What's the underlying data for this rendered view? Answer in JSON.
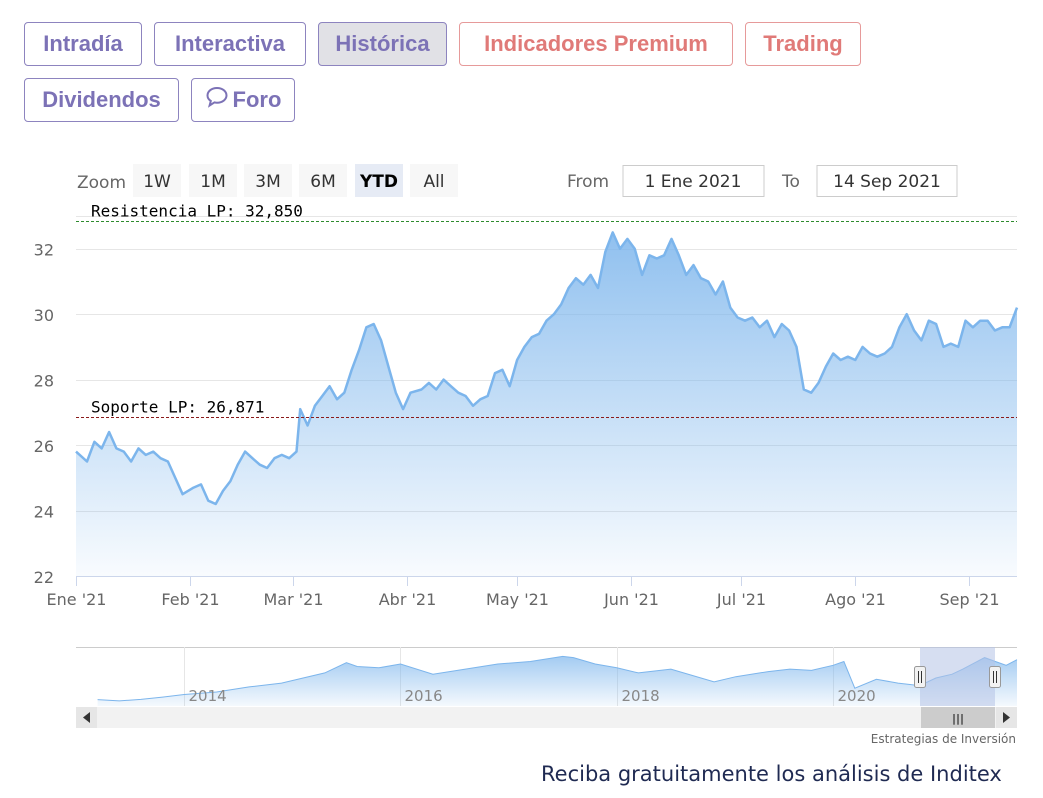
{
  "tabs": {
    "row1": [
      {
        "label": "Intradía",
        "style": "purple"
      },
      {
        "label": "Interactiva",
        "style": "purple"
      },
      {
        "label": "Histórica",
        "style": "active"
      },
      {
        "label": "Indicadores Premium",
        "style": "red"
      },
      {
        "label": "Trading",
        "style": "red"
      }
    ],
    "row2": [
      {
        "label": "Dividendos",
        "style": "purple"
      },
      {
        "label": "Foro",
        "style": "purple",
        "icon": "chat-bubble-icon"
      }
    ]
  },
  "range_selector": {
    "zoom_label": "Zoom",
    "buttons": [
      "1W",
      "1M",
      "3M",
      "6M",
      "YTD",
      "All"
    ],
    "selected": "YTD",
    "from_label": "From",
    "from_value": "1 Ene 2021",
    "to_label": "To",
    "to_value": "14 Sep 2021"
  },
  "colors": {
    "line": "#7cb5ec",
    "resistance": "#2e8b2e",
    "support": "#8b1a1a",
    "navigator_mask": "#b4c3e6"
  },
  "chart_data": {
    "type": "area",
    "series": [
      {
        "values": [
          [
            "2021-01-01",
            25.8
          ],
          [
            "2021-01-04",
            25.5
          ],
          [
            "2021-01-06",
            26.1
          ],
          [
            "2021-01-08",
            25.9
          ],
          [
            "2021-01-10",
            26.4
          ],
          [
            "2021-01-12",
            25.9
          ],
          [
            "2021-01-14",
            25.8
          ],
          [
            "2021-01-16",
            25.5
          ],
          [
            "2021-01-18",
            25.9
          ],
          [
            "2021-01-20",
            25.7
          ],
          [
            "2021-01-22",
            25.8
          ],
          [
            "2021-01-24",
            25.6
          ],
          [
            "2021-01-26",
            25.5
          ],
          [
            "2021-01-28",
            25.0
          ],
          [
            "2021-01-30",
            24.5
          ],
          [
            "2021-02-02",
            24.7
          ],
          [
            "2021-02-04",
            24.8
          ],
          [
            "2021-02-06",
            24.3
          ],
          [
            "2021-02-08",
            24.2
          ],
          [
            "2021-02-10",
            24.6
          ],
          [
            "2021-02-12",
            24.9
          ],
          [
            "2021-02-14",
            25.4
          ],
          [
            "2021-02-16",
            25.8
          ],
          [
            "2021-02-18",
            25.6
          ],
          [
            "2021-02-20",
            25.4
          ],
          [
            "2021-02-22",
            25.3
          ],
          [
            "2021-02-24",
            25.6
          ],
          [
            "2021-02-26",
            25.7
          ],
          [
            "2021-02-28",
            25.6
          ],
          [
            "2021-03-02",
            25.8
          ],
          [
            "2021-03-03",
            27.1
          ],
          [
            "2021-03-05",
            26.6
          ],
          [
            "2021-03-07",
            27.2
          ],
          [
            "2021-03-09",
            27.5
          ],
          [
            "2021-03-11",
            27.8
          ],
          [
            "2021-03-13",
            27.4
          ],
          [
            "2021-03-15",
            27.6
          ],
          [
            "2021-03-17",
            28.3
          ],
          [
            "2021-03-19",
            28.9
          ],
          [
            "2021-03-21",
            29.6
          ],
          [
            "2021-03-23",
            29.7
          ],
          [
            "2021-03-25",
            29.2
          ],
          [
            "2021-03-27",
            28.4
          ],
          [
            "2021-03-29",
            27.6
          ],
          [
            "2021-03-31",
            27.1
          ],
          [
            "2021-04-02",
            27.6
          ],
          [
            "2021-04-05",
            27.7
          ],
          [
            "2021-04-07",
            27.9
          ],
          [
            "2021-04-09",
            27.7
          ],
          [
            "2021-04-11",
            28.0
          ],
          [
            "2021-04-13",
            27.8
          ],
          [
            "2021-04-15",
            27.6
          ],
          [
            "2021-04-17",
            27.5
          ],
          [
            "2021-04-19",
            27.2
          ],
          [
            "2021-04-21",
            27.4
          ],
          [
            "2021-04-23",
            27.5
          ],
          [
            "2021-04-25",
            28.2
          ],
          [
            "2021-04-27",
            28.3
          ],
          [
            "2021-04-29",
            27.8
          ],
          [
            "2021-05-01",
            28.6
          ],
          [
            "2021-05-03",
            29.0
          ],
          [
            "2021-05-05",
            29.3
          ],
          [
            "2021-05-07",
            29.4
          ],
          [
            "2021-05-09",
            29.8
          ],
          [
            "2021-05-11",
            30.0
          ],
          [
            "2021-05-13",
            30.3
          ],
          [
            "2021-05-15",
            30.8
          ],
          [
            "2021-05-17",
            31.1
          ],
          [
            "2021-05-19",
            30.9
          ],
          [
            "2021-05-21",
            31.2
          ],
          [
            "2021-05-23",
            30.8
          ],
          [
            "2021-05-25",
            31.9
          ],
          [
            "2021-05-27",
            32.5
          ],
          [
            "2021-05-29",
            32.0
          ],
          [
            "2021-05-31",
            32.3
          ],
          [
            "2021-06-02",
            32.0
          ],
          [
            "2021-06-04",
            31.2
          ],
          [
            "2021-06-06",
            31.8
          ],
          [
            "2021-06-08",
            31.7
          ],
          [
            "2021-06-10",
            31.8
          ],
          [
            "2021-06-12",
            32.3
          ],
          [
            "2021-06-14",
            31.8
          ],
          [
            "2021-06-16",
            31.2
          ],
          [
            "2021-06-18",
            31.5
          ],
          [
            "2021-06-20",
            31.1
          ],
          [
            "2021-06-22",
            31.0
          ],
          [
            "2021-06-24",
            30.6
          ],
          [
            "2021-06-26",
            31.0
          ],
          [
            "2021-06-28",
            30.2
          ],
          [
            "2021-06-30",
            29.9
          ],
          [
            "2021-07-02",
            29.8
          ],
          [
            "2021-07-04",
            29.9
          ],
          [
            "2021-07-06",
            29.6
          ],
          [
            "2021-07-08",
            29.8
          ],
          [
            "2021-07-10",
            29.3
          ],
          [
            "2021-07-12",
            29.7
          ],
          [
            "2021-07-14",
            29.5
          ],
          [
            "2021-07-16",
            29.0
          ],
          [
            "2021-07-18",
            27.7
          ],
          [
            "2021-07-20",
            27.6
          ],
          [
            "2021-07-22",
            27.9
          ],
          [
            "2021-07-24",
            28.4
          ],
          [
            "2021-07-26",
            28.8
          ],
          [
            "2021-07-28",
            28.6
          ],
          [
            "2021-07-30",
            28.7
          ],
          [
            "2021-08-01",
            28.6
          ],
          [
            "2021-08-03",
            29.0
          ],
          [
            "2021-08-05",
            28.8
          ],
          [
            "2021-08-07",
            28.7
          ],
          [
            "2021-08-09",
            28.8
          ],
          [
            "2021-08-11",
            29.0
          ],
          [
            "2021-08-13",
            29.6
          ],
          [
            "2021-08-15",
            30.0
          ],
          [
            "2021-08-17",
            29.5
          ],
          [
            "2021-08-19",
            29.2
          ],
          [
            "2021-08-21",
            29.8
          ],
          [
            "2021-08-23",
            29.7
          ],
          [
            "2021-08-25",
            29.0
          ],
          [
            "2021-08-27",
            29.1
          ],
          [
            "2021-08-29",
            29.0
          ],
          [
            "2021-08-31",
            29.8
          ],
          [
            "2021-09-02",
            29.6
          ],
          [
            "2021-09-04",
            29.8
          ],
          [
            "2021-09-06",
            29.8
          ],
          [
            "2021-09-08",
            29.5
          ],
          [
            "2021-09-10",
            29.6
          ],
          [
            "2021-09-12",
            29.6
          ],
          [
            "2021-09-14",
            30.2
          ]
        ]
      }
    ],
    "x_range": [
      "2021-01-01",
      "2021-09-14"
    ],
    "ylim": [
      22,
      33
    ],
    "y_ticks": [
      22,
      24,
      26,
      28,
      30,
      32
    ],
    "x_ticks": [
      {
        "date": "2021-01-01",
        "label": "Ene '21"
      },
      {
        "date": "2021-02-01",
        "label": "Feb '21"
      },
      {
        "date": "2021-03-01",
        "label": "Mar '21"
      },
      {
        "date": "2021-04-01",
        "label": "Abr '21"
      },
      {
        "date": "2021-05-01",
        "label": "May '21"
      },
      {
        "date": "2021-06-01",
        "label": "Jun '21"
      },
      {
        "date": "2021-07-01",
        "label": "Jul '21"
      },
      {
        "date": "2021-08-01",
        "label": "Ago '21"
      },
      {
        "date": "2021-09-01",
        "label": "Sep '21"
      }
    ],
    "grid": true,
    "plot_lines": [
      {
        "label": "Resistencia LP: 32,850",
        "value": 32.85,
        "style": "dashed",
        "color": "#2e8b2e"
      },
      {
        "label": "Soporte LP: 26,871",
        "value": 26.871,
        "style": "dashed",
        "color": "#8b1a1a"
      }
    ],
    "navigator": {
      "x_labels": [
        "2014",
        "2016",
        "2018",
        "2020"
      ],
      "x_range": [
        2013.0,
        2021.7
      ],
      "label_years": [
        2014,
        2016,
        2018,
        2020
      ],
      "values": [
        [
          2013.2,
          14.5
        ],
        [
          2013.4,
          14.0
        ],
        [
          2013.6,
          14.6
        ],
        [
          2013.8,
          15.5
        ],
        [
          2014.0,
          16.5
        ],
        [
          2014.3,
          17.5
        ],
        [
          2014.6,
          19.5
        ],
        [
          2014.9,
          21.0
        ],
        [
          2015.1,
          23.0
        ],
        [
          2015.3,
          25.0
        ],
        [
          2015.5,
          29.0
        ],
        [
          2015.6,
          27.5
        ],
        [
          2015.8,
          27.0
        ],
        [
          2016.0,
          28.5
        ],
        [
          2016.3,
          24.5
        ],
        [
          2016.6,
          26.5
        ],
        [
          2016.9,
          28.5
        ],
        [
          2017.2,
          29.5
        ],
        [
          2017.5,
          31.5
        ],
        [
          2017.6,
          31.0
        ],
        [
          2017.8,
          28.5
        ],
        [
          2018.0,
          27.0
        ],
        [
          2018.2,
          25.0
        ],
        [
          2018.5,
          26.5
        ],
        [
          2018.7,
          24.0
        ],
        [
          2018.9,
          21.5
        ],
        [
          2019.1,
          23.5
        ],
        [
          2019.4,
          25.5
        ],
        [
          2019.6,
          26.5
        ],
        [
          2019.8,
          26.0
        ],
        [
          2020.0,
          28.0
        ],
        [
          2020.1,
          29.5
        ],
        [
          2020.2,
          19.0
        ],
        [
          2020.4,
          22.5
        ],
        [
          2020.6,
          21.0
        ],
        [
          2020.8,
          20.0
        ],
        [
          2020.95,
          23.0
        ],
        [
          2021.1,
          24.5
        ],
        [
          2021.2,
          26.5
        ],
        [
          2021.4,
          31.0
        ],
        [
          2021.5,
          29.5
        ],
        [
          2021.6,
          28.0
        ],
        [
          2021.7,
          30.2
        ]
      ],
      "selection": [
        "2021-01-01",
        "2021-09-14"
      ],
      "scrollbar_handle": "|||"
    },
    "credits": "Estrategias de Inversión"
  },
  "footer_text": "Reciba gratuitamente los análisis de Inditex"
}
